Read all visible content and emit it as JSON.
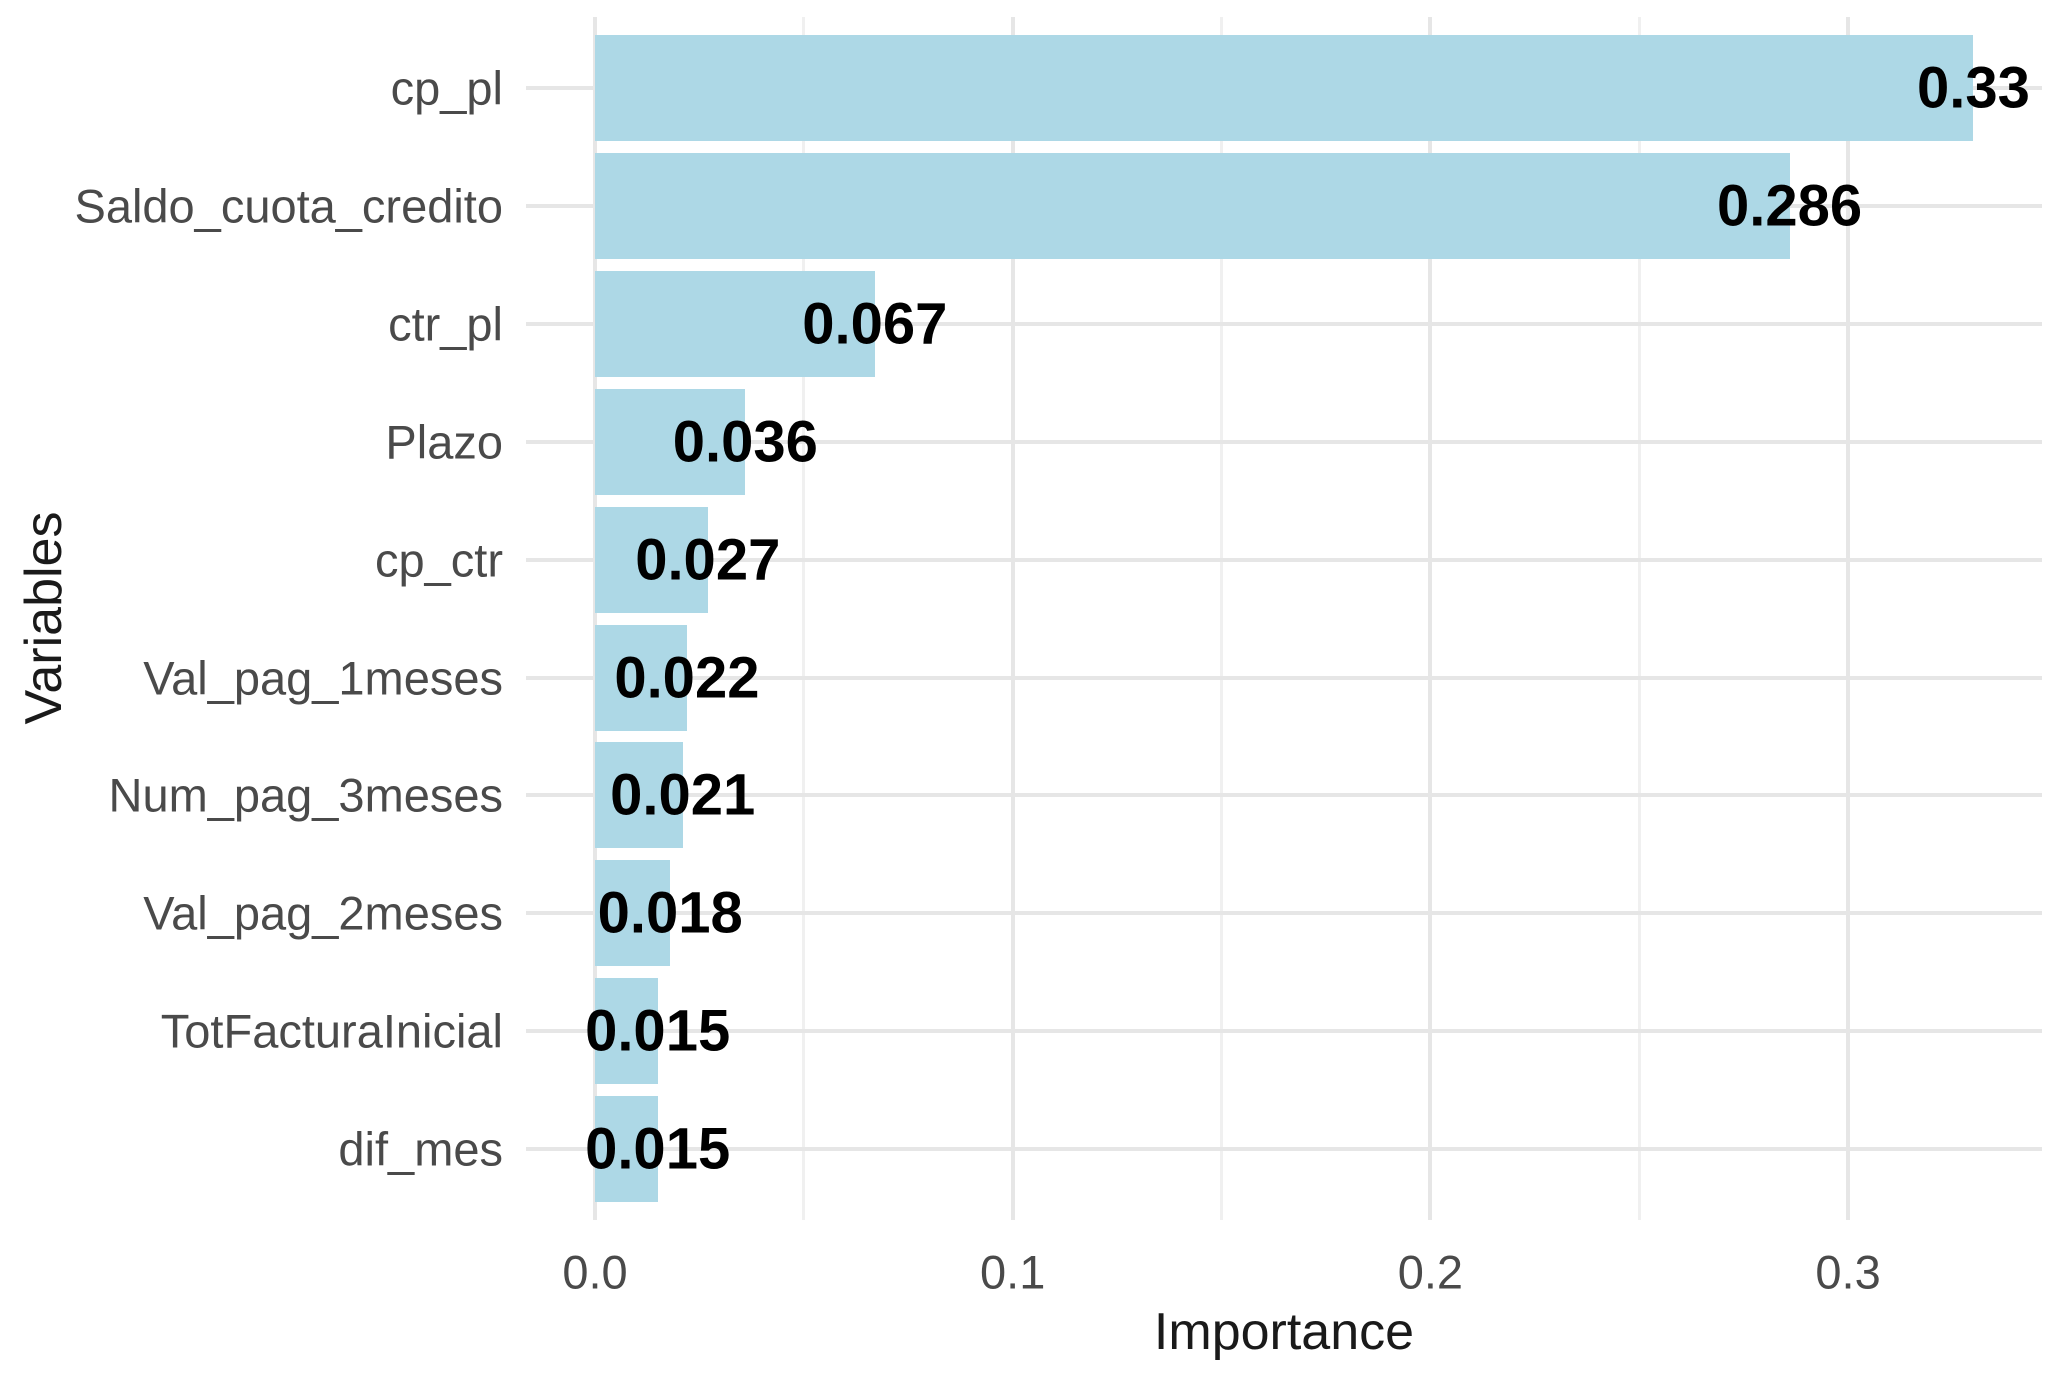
{
  "chart_data": {
    "type": "bar",
    "orientation": "horizontal",
    "title": "",
    "xlabel": "Importance",
    "ylabel": "Variables",
    "categories": [
      "cp_pl",
      "Saldo_cuota_credito",
      "ctr_pl",
      "Plazo",
      "cp_ctr",
      "Val_pag_1meses",
      "Num_pag_3meses",
      "Val_pag_2meses",
      "TotFacturaInicial",
      "dif_mes"
    ],
    "values": [
      0.33,
      0.286,
      0.067,
      0.036,
      0.027,
      0.022,
      0.021,
      0.018,
      0.015,
      0.015
    ],
    "value_labels": [
      "0.33",
      "0.286",
      "0.067",
      "0.036",
      "0.027",
      "0.022",
      "0.021",
      "0.018",
      "0.015",
      "0.015"
    ],
    "x_ticks": {
      "labels": [
        "0.0",
        "0.1",
        "0.2",
        "0.3"
      ],
      "values": [
        0,
        0.1,
        0.2,
        0.3
      ]
    },
    "x_minor_ticks": [
      0.05,
      0.15,
      0.25
    ],
    "xlim": [
      -0.0165,
      0.3465
    ],
    "grid": "vertical major+minor, horizontal major at each category; no axis lines, no ticks (minimal theme)",
    "legend": "none",
    "colors": {
      "bar_fill": "#ADD8E6",
      "grid_major": "#E6E6E6",
      "grid_minor": "#F0F0F0",
      "axis_text": "#4A4A4A",
      "axis_title": "#1A1A1A",
      "value_label": "#000000",
      "background": "#FFFFFF"
    }
  }
}
